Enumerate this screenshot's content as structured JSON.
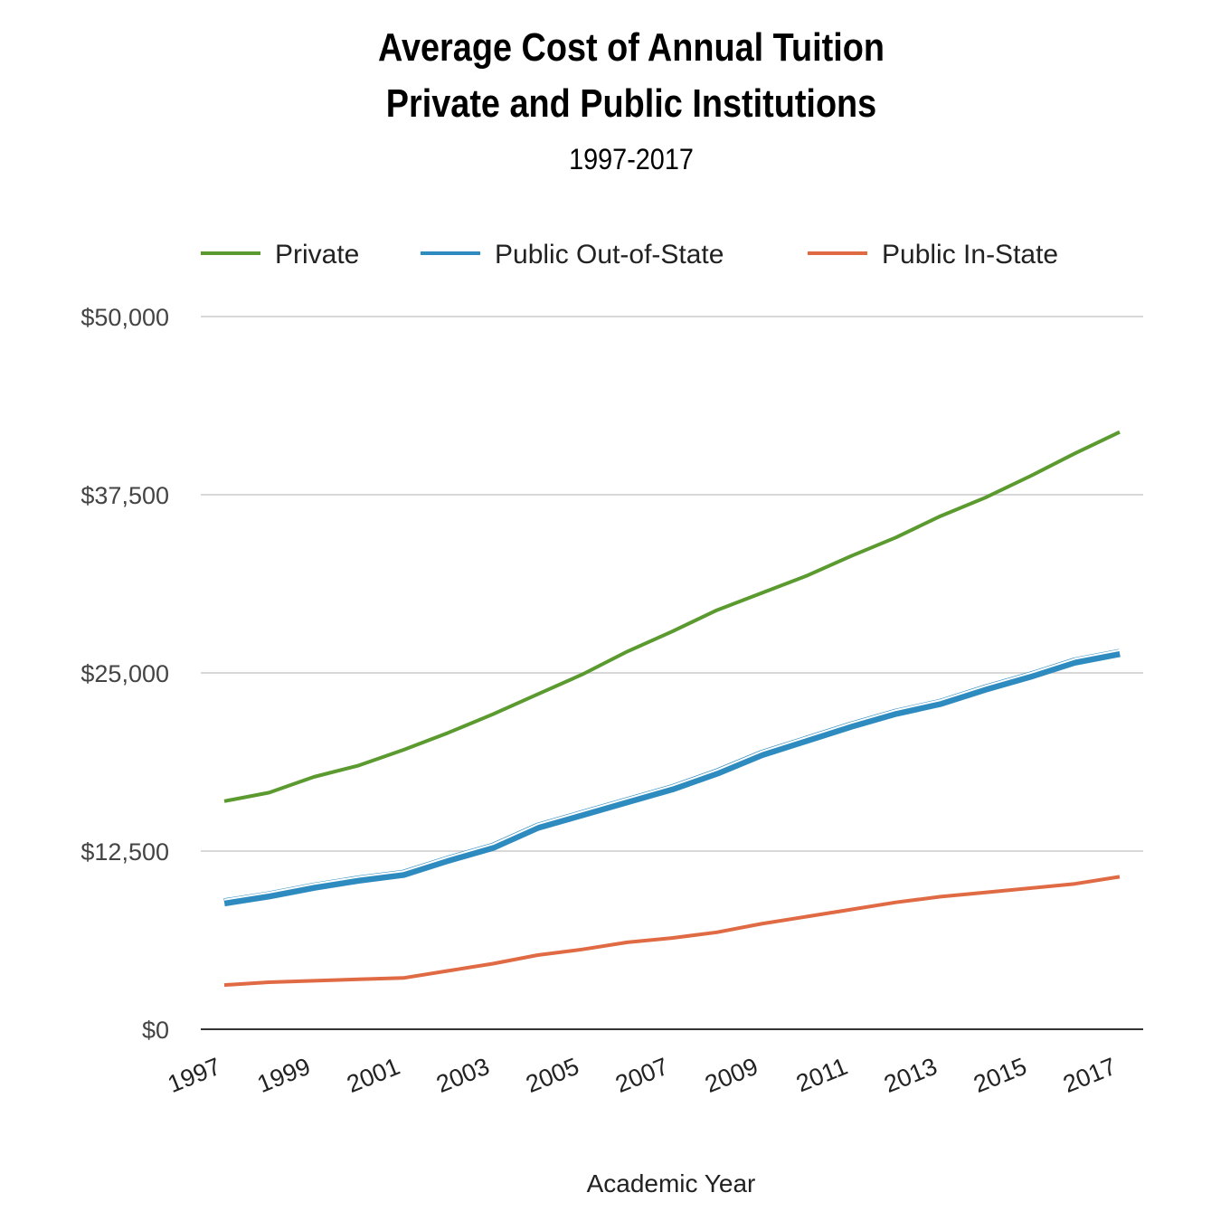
{
  "chart_data": {
    "type": "line",
    "title": "Average Cost of Annual Tuition",
    "title_line2": "Private and Public Institutions",
    "subtitle": "1997-2017",
    "xlabel": "Academic Year",
    "ylabel": "",
    "x": [
      1997,
      1998,
      1999,
      2000,
      2001,
      2002,
      2003,
      2004,
      2005,
      2006,
      2007,
      2008,
      2009,
      2010,
      2011,
      2012,
      2013,
      2014,
      2015,
      2016,
      2017
    ],
    "x_tick_labels": [
      "1997",
      "1999",
      "2001",
      "2003",
      "2005",
      "2007",
      "2009",
      "2011",
      "2013",
      "2015",
      "2017"
    ],
    "y_tick_labels": [
      "$0",
      "$12,500",
      "$25,000",
      "$37,500",
      "$50,000"
    ],
    "y_ticks": [
      0,
      12500,
      25000,
      37500,
      50000
    ],
    "ylim": [
      0,
      50000
    ],
    "xlim": [
      1997,
      2017
    ],
    "grid": true,
    "legend_position": "top",
    "series": [
      {
        "name": "Private",
        "color": "#5a9a2e",
        "values": [
          16000,
          16600,
          17700,
          18500,
          19600,
          20800,
          22100,
          23500,
          24900,
          26500,
          27900,
          29400,
          30600,
          31800,
          33200,
          34500,
          36000,
          37300,
          38800,
          40400,
          41900
        ]
      },
      {
        "name": "Public Out-of-State",
        "color": "#2e8bbf",
        "values": [
          8900,
          9400,
          10000,
          10500,
          10900,
          11900,
          12800,
          14200,
          15100,
          16000,
          16900,
          18000,
          19300,
          20300,
          21300,
          22200,
          22900,
          23900,
          24800,
          25800,
          26400
        ]
      },
      {
        "name": "Public In-State",
        "color": "#e06a44",
        "values": [
          3100,
          3300,
          3400,
          3500,
          3600,
          4100,
          4600,
          5200,
          5600,
          6100,
          6400,
          6800,
          7400,
          7900,
          8400,
          8900,
          9300,
          9600,
          9900,
          10200,
          10700
        ]
      }
    ]
  }
}
